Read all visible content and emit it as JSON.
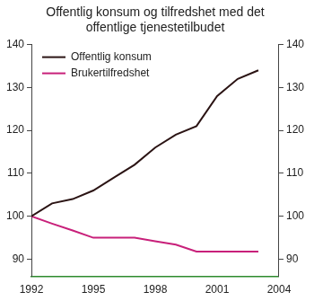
{
  "chart_data": {
    "type": "line",
    "title": [
      "Offentlig konsum og tilfredshet med det",
      "offentlige tjenestetilbudet"
    ],
    "x": [
      1992,
      1993,
      1994,
      1995,
      1996,
      1997,
      1998,
      1999,
      2000,
      2001,
      2002,
      2003
    ],
    "series": [
      {
        "name": "Offentlig konsum",
        "color": "#2b1414",
        "values": [
          100,
          103,
          104,
          106,
          109,
          112,
          116,
          119,
          121,
          128,
          132,
          134
        ]
      },
      {
        "name": "Brukertilfredshet",
        "color": "#c8207a",
        "values": [
          100,
          98.3,
          96.7,
          95,
          95,
          95,
          94.2,
          93.4,
          91.8,
          91.8,
          91.8,
          91.8
        ]
      }
    ],
    "xlim": [
      1992,
      2004
    ],
    "xticks": [
      1992,
      1995,
      1998,
      2001,
      2004
    ],
    "ylim": [
      86,
      140
    ],
    "yticks": [
      90,
      100,
      110,
      120,
      130,
      140
    ],
    "y2lim": [
      86,
      140
    ],
    "y2ticks": [
      90,
      100,
      110,
      120,
      130,
      140
    ],
    "grid": false,
    "legend": "upper left"
  }
}
